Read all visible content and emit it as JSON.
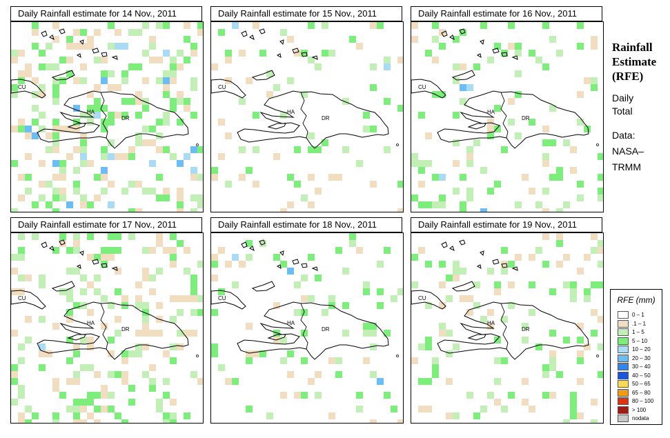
{
  "panels": [
    {
      "title": "Daily Rainfall estimate for  14 Nov., 2011",
      "seed": 14,
      "density": 0.28,
      "heavy": 0.08
    },
    {
      "title": "Daily Rainfall estimate for  15 Nov., 2011",
      "seed": 15,
      "density": 0.09,
      "heavy": 0.02
    },
    {
      "title": "Daily Rainfall estimate for  16 Nov., 2011",
      "seed": 16,
      "density": 0.13,
      "heavy": 0.03
    },
    {
      "title": "Daily Rainfall estimate for  17 Nov., 2011",
      "seed": 17,
      "density": 0.22,
      "heavy": 0.01
    },
    {
      "title": "Daily Rainfall estimate for  18 Nov., 2011",
      "seed": 18,
      "density": 0.12,
      "heavy": 0.04
    },
    {
      "title": "Daily Rainfall estimate for  19 Nov., 2011",
      "seed": 19,
      "density": 0.15,
      "heavy": 0.01
    }
  ],
  "map_labels": {
    "cuba": "CU",
    "haiti": "HA",
    "dominican_republic": "DR"
  },
  "title_block": {
    "line1": "Rainfall",
    "line2": "Estimate",
    "line3": "(RFE)",
    "sub1": "Daily",
    "sub2": "Total",
    "src1": "Data:",
    "src2": "NASA–",
    "src3": "TRMM"
  },
  "legend": {
    "title": "RFE (mm)",
    "items": [
      {
        "label": "0 – 1",
        "color": "#ffffff"
      },
      {
        "label": ".1 – 1",
        "color": "#f1ddc0"
      },
      {
        "label": "1 – 5",
        "color": "#c2efb6"
      },
      {
        "label": "5 – 10",
        "color": "#7ded7b"
      },
      {
        "label": "10 – 20",
        "color": "#a9dcf4"
      },
      {
        "label": "20 – 30",
        "color": "#6cbdf3"
      },
      {
        "label": "30 – 40",
        "color": "#2f86ec"
      },
      {
        "label": "40 – 50",
        "color": "#1c55d8"
      },
      {
        "label": "50 – 65",
        "color": "#f6da5a"
      },
      {
        "label": "65 – 80",
        "color": "#f39c10"
      },
      {
        "label": "80 – 100",
        "color": "#e0320f"
      },
      {
        "label": "> 100",
        "color": "#9d1c14"
      },
      {
        "label": "nodata",
        "color": "#c8c8c8"
      }
    ]
  }
}
